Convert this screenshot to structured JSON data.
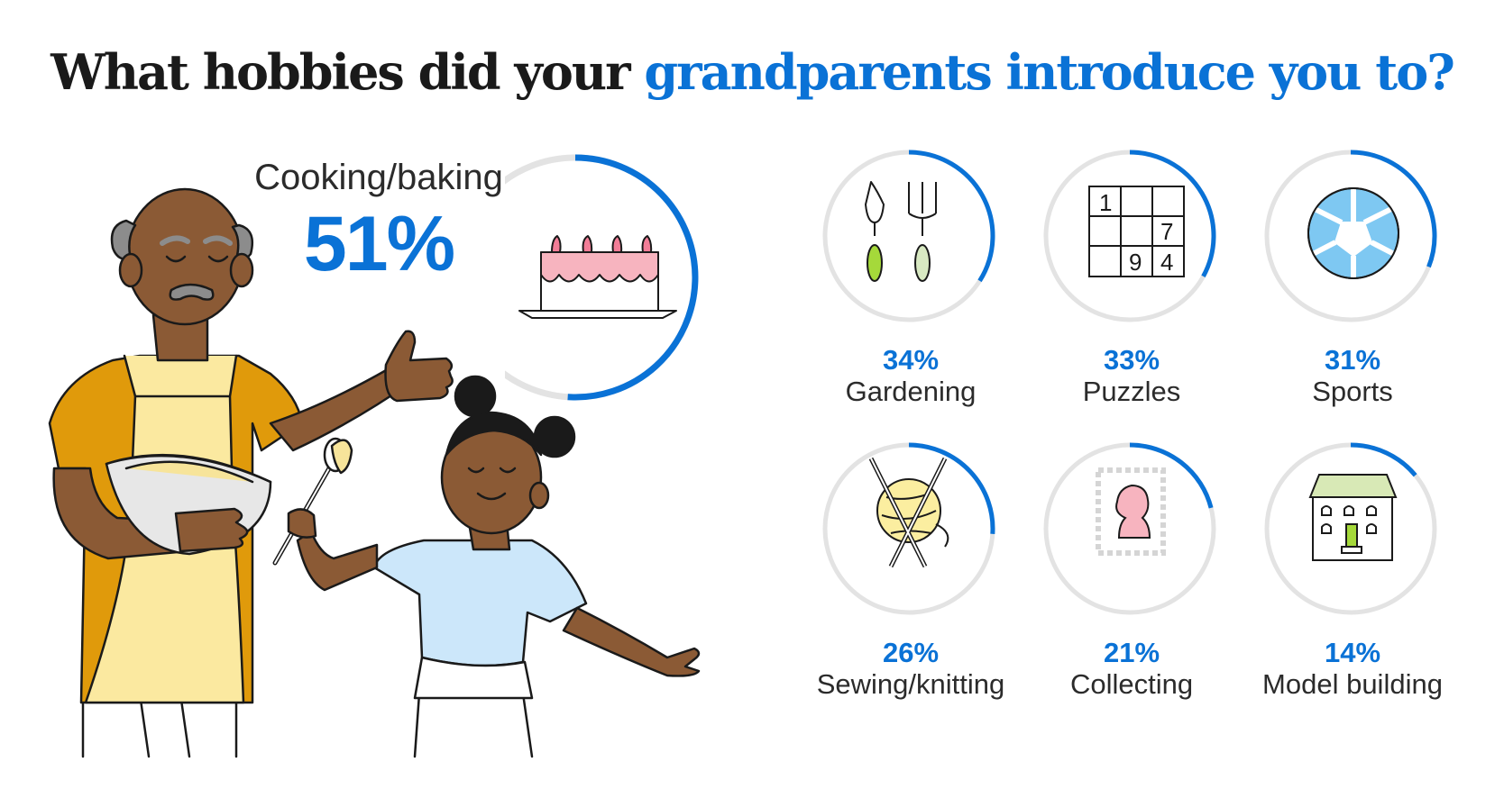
{
  "title": {
    "part1": "What hobbies did your ",
    "part2": "grandparents introduce you to?"
  },
  "featured": {
    "label": "Cooking/baking",
    "value_text": "51%",
    "value": 51,
    "icon": "cake-icon"
  },
  "colors": {
    "accent": "#0a72d6",
    "ring_track": "#e3e3e3",
    "text": "#2b2b2b"
  },
  "hobbies": [
    {
      "label": "Gardening",
      "value_text": "34%",
      "value": 34,
      "icon": "garden-tools-icon"
    },
    {
      "label": "Puzzles",
      "value_text": "33%",
      "value": 33,
      "icon": "sudoku-icon"
    },
    {
      "label": "Sports",
      "value_text": "31%",
      "value": 31,
      "icon": "soccer-ball-icon"
    },
    {
      "label": "Sewing/knitting",
      "value_text": "26%",
      "value": 26,
      "icon": "yarn-needles-icon"
    },
    {
      "label": "Collecting",
      "value_text": "21%",
      "value": 21,
      "icon": "stamp-icon"
    },
    {
      "label": "Model building",
      "value_text": "14%",
      "value": 14,
      "icon": "house-model-icon"
    }
  ],
  "sudoku_digits": [
    "1",
    "7",
    "9",
    "4"
  ],
  "chart_data": {
    "type": "pie",
    "title": "What hobbies did your grandparents introduce you to?",
    "categories": [
      "Cooking/baking",
      "Gardening",
      "Puzzles",
      "Sports",
      "Sewing/knitting",
      "Collecting",
      "Model building"
    ],
    "values": [
      51,
      34,
      33,
      31,
      26,
      21,
      14
    ],
    "unit": "%"
  }
}
